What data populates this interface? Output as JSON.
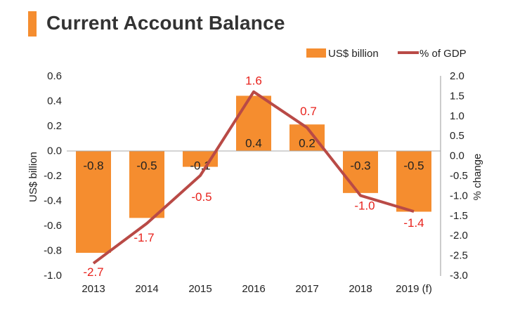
{
  "title": "Current Account Balance",
  "colors": {
    "bar": "#f58d2f",
    "line": "#b94a46",
    "label_line": "#e8221c",
    "accent": "#f58d2f"
  },
  "chart_data": {
    "type": "bar",
    "categories": [
      "2013",
      "2014",
      "2015",
      "2016",
      "2017",
      "2018",
      "2019 (f)"
    ],
    "series": [
      {
        "name": "US$ billion",
        "type": "bar",
        "axis": "left",
        "values": [
          -0.8,
          -0.5,
          -0.1,
          0.4,
          0.2,
          -0.3,
          -0.5
        ],
        "value_labels": [
          "-0.8",
          "-0.5",
          "-0.1",
          "0.4",
          "0.2",
          "-0.3",
          "-0.5"
        ],
        "plot_values": [
          -0.82,
          -0.54,
          -0.13,
          0.44,
          0.21,
          -0.34,
          -0.49
        ]
      },
      {
        "name": "% of GDP",
        "type": "line",
        "axis": "right",
        "values": [
          -2.7,
          -1.7,
          -0.5,
          1.6,
          0.7,
          -1.0,
          -1.4
        ],
        "value_labels": [
          "-2.7",
          "-1.7",
          "-0.5",
          "1.6",
          "0.7",
          "-1.0",
          "-1.4"
        ]
      }
    ],
    "ylabel": "US$ billion",
    "y2label": "% change",
    "ylim": [
      -1.0,
      0.6
    ],
    "y2lim": [
      -3.0,
      2.0
    ],
    "yticks": [
      "0.6",
      "0.4",
      "0.2",
      "0.0",
      "-0.2",
      "-0.4",
      "-0.6",
      "-0.8",
      "-1.0"
    ],
    "y2ticks": [
      "2.0",
      "1.5",
      "1.0",
      "0.5",
      "0.0",
      "-0.5",
      "-1.0",
      "-1.5",
      "-2.0",
      "-2.5",
      "-3.0"
    ],
    "grid": false,
    "legend_position": "top-right"
  }
}
